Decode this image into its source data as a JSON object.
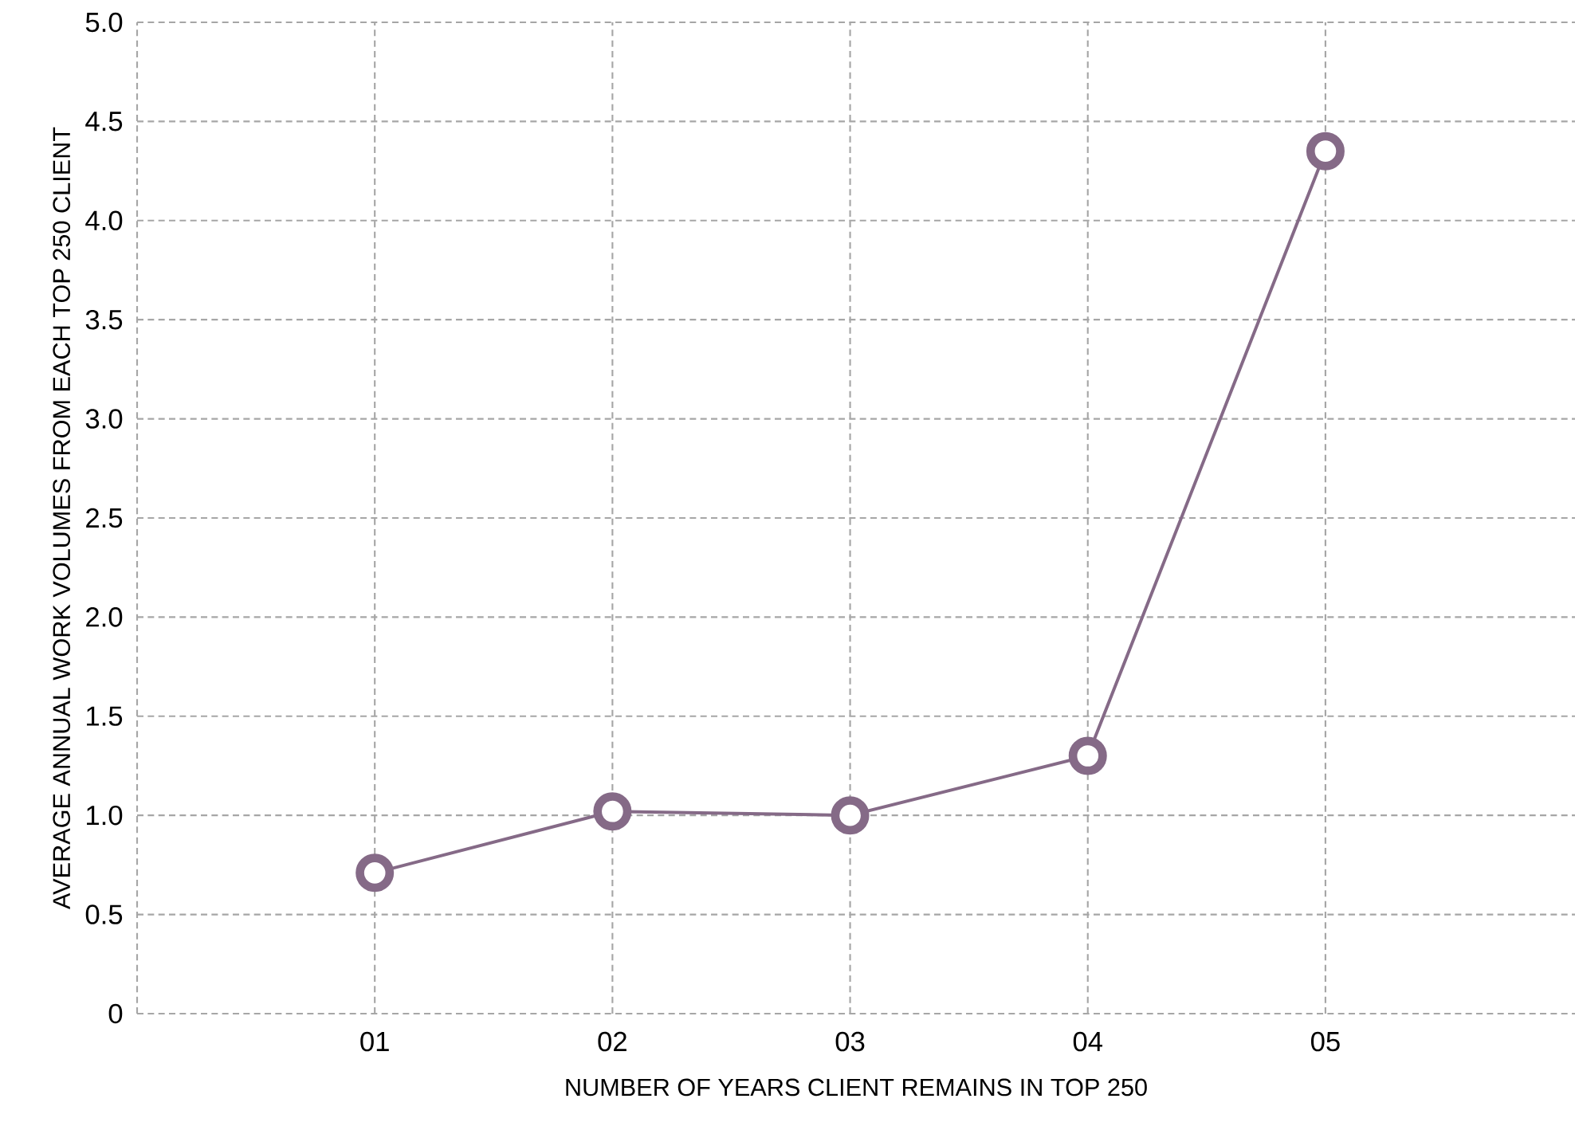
{
  "chart_data": {
    "type": "line",
    "xlabel": "NUMBER OF YEARS CLIENT REMAINS IN TOP 250",
    "ylabel": "AVERAGE ANNUAL WORK VOLUMES FROM EACH TOP 250 CLIENT",
    "x": [
      1,
      2,
      3,
      4,
      5
    ],
    "series": [
      {
        "color": "#856a87",
        "values": [
          0.71,
          1.02,
          1.0,
          1.3,
          4.35
        ]
      }
    ],
    "xlim": [
      0,
      6.05
    ],
    "xticks": [
      {
        "value": 0,
        "label": null
      },
      {
        "value": 1,
        "label": "01"
      },
      {
        "value": 2,
        "label": "02"
      },
      {
        "value": 3,
        "label": "03"
      },
      {
        "value": 4,
        "label": "04"
      },
      {
        "value": 5,
        "label": "05"
      }
    ],
    "ylim": [
      0,
      5.0
    ],
    "yticks": [
      0,
      {
        "value": 0.5,
        "label": "0.5"
      },
      {
        "value": 1,
        "label": "1.0"
      },
      {
        "value": 1.5,
        "label": "1.5"
      },
      {
        "value": 2,
        "label": "2.0"
      },
      {
        "value": 2.5,
        "label": "2.5"
      },
      {
        "value": 3,
        "label": "3.0"
      },
      {
        "value": 3.5,
        "label": "3.5"
      },
      {
        "value": 4,
        "label": "4.0"
      },
      {
        "value": 4.5,
        "label": "4.5"
      },
      {
        "value": 5,
        "label": "5.0"
      }
    ],
    "grid": true,
    "marker": "circle",
    "line_style": "solid"
  }
}
